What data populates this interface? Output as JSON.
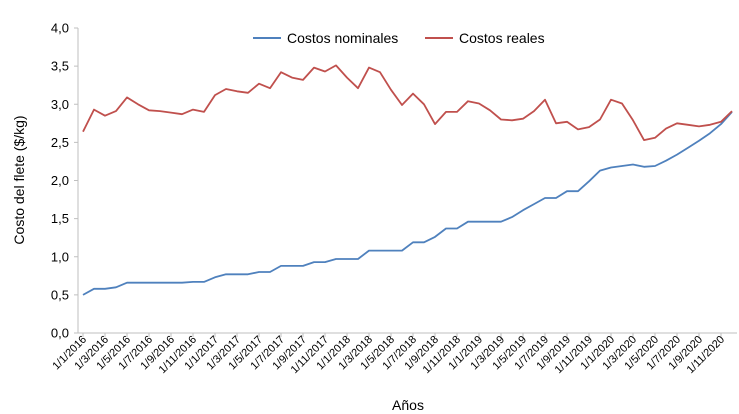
{
  "chart_data": {
    "type": "line",
    "title": "",
    "xlabel": "Años",
    "ylabel": "Costo del flete  ($/kg)",
    "ylim": [
      0,
      4.0
    ],
    "yticks": [
      "0,0",
      "0,5",
      "1,0",
      "1,5",
      "2,0",
      "2,5",
      "3,0",
      "3,5",
      "4,0"
    ],
    "grid": false,
    "legend_position": "top-center",
    "x": [
      "1/1/2016",
      "1/2/2016",
      "1/3/2016",
      "1/4/2016",
      "1/5/2016",
      "1/6/2016",
      "1/7/2016",
      "1/8/2016",
      "1/9/2016",
      "1/10/2016",
      "1/11/2016",
      "1/12/2016",
      "1/1/2017",
      "1/2/2017",
      "1/3/2017",
      "1/4/2017",
      "1/5/2017",
      "1/6/2017",
      "1/7/2017",
      "1/8/2017",
      "1/9/2017",
      "1/10/2017",
      "1/11/2017",
      "1/12/2017",
      "1/1/2018",
      "1/2/2018",
      "1/3/2018",
      "1/4/2018",
      "1/5/2018",
      "1/6/2018",
      "1/7/2018",
      "1/8/2018",
      "1/9/2018",
      "1/10/2018",
      "1/11/2018",
      "1/12/2018",
      "1/1/2019",
      "1/2/2019",
      "1/3/2019",
      "1/4/2019",
      "1/5/2019",
      "1/6/2019",
      "1/7/2019",
      "1/8/2019",
      "1/9/2019",
      "1/10/2019",
      "1/11/2019",
      "1/12/2019",
      "1/1/2020",
      "1/2/2020",
      "1/3/2020",
      "1/4/2020",
      "1/5/2020",
      "1/6/2020",
      "1/7/2020",
      "1/8/2020",
      "1/9/2020",
      "1/10/2020",
      "1/11/2020",
      "1/12/2020"
    ],
    "x_tick_labels": [
      "1/1/2016",
      "1/3/2016",
      "1/5/2016",
      "1/7/2016",
      "1/9/2016",
      "1/11/2016",
      "1/1/2017",
      "1/3/2017",
      "1/5/2017",
      "1/7/2017",
      "1/9/2017",
      "1/11/2017",
      "1/1/2018",
      "1/3/2018",
      "1/5/2018",
      "1/7/2018",
      "1/9/2018",
      "1/11/2018",
      "1/1/2019",
      "1/3/2019",
      "1/5/2019",
      "1/7/2019",
      "1/9/2019",
      "1/11/2019",
      "1/1/2020",
      "1/3/2020",
      "1/5/2020",
      "1/7/2020",
      "1/9/2020",
      "1/11/2020"
    ],
    "series": [
      {
        "name": "Costos nominales",
        "color": "#4f81bd",
        "values": [
          0.5,
          0.58,
          0.58,
          0.6,
          0.66,
          0.66,
          0.66,
          0.66,
          0.66,
          0.66,
          0.67,
          0.67,
          0.73,
          0.77,
          0.77,
          0.77,
          0.8,
          0.8,
          0.88,
          0.88,
          0.88,
          0.93,
          0.93,
          0.97,
          0.97,
          0.97,
          1.08,
          1.08,
          1.08,
          1.08,
          1.19,
          1.19,
          1.26,
          1.37,
          1.37,
          1.46,
          1.46,
          1.46,
          1.46,
          1.52,
          1.61,
          1.69,
          1.77,
          1.77,
          1.86,
          1.86,
          1.99,
          2.13,
          2.17,
          2.19,
          2.21,
          2.18,
          2.19,
          2.26,
          2.34,
          2.43,
          2.52,
          2.62,
          2.74,
          2.9
        ]
      },
      {
        "name": "Costos reales",
        "color": "#c0504d",
        "values": [
          2.64,
          2.93,
          2.85,
          2.91,
          3.09,
          3.0,
          2.92,
          2.91,
          2.89,
          2.87,
          2.93,
          2.9,
          3.12,
          3.2,
          3.17,
          3.15,
          3.27,
          3.21,
          3.42,
          3.35,
          3.32,
          3.48,
          3.43,
          3.51,
          3.35,
          3.21,
          3.48,
          3.42,
          3.19,
          2.99,
          3.14,
          3.0,
          2.74,
          2.9,
          2.9,
          3.04,
          3.01,
          2.92,
          2.8,
          2.79,
          2.81,
          2.91,
          3.06,
          2.75,
          2.77,
          2.67,
          2.7,
          2.8,
          3.06,
          3.01,
          2.79,
          2.53,
          2.56,
          2.68,
          2.75,
          2.73,
          2.71,
          2.73,
          2.77,
          2.91
        ]
      }
    ]
  }
}
